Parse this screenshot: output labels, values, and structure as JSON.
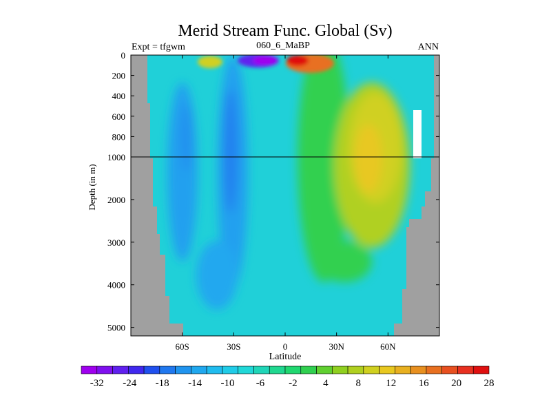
{
  "chart_data": {
    "type": "heatmap",
    "title": "Merid Stream Func. Global (Sv)",
    "left_label": "Expt = tfgwm",
    "center_label": "060_6_MaBP",
    "right_label": "ANN",
    "xlabel": "Latitude",
    "ylabel": "Depth (in m)",
    "x_ticks": [
      {
        "value": -60,
        "label": "60S"
      },
      {
        "value": -30,
        "label": "30S"
      },
      {
        "value": 0,
        "label": "0"
      },
      {
        "value": 30,
        "label": "30N"
      },
      {
        "value": 60,
        "label": "60N"
      }
    ],
    "y_ticks_upper": [
      {
        "value": 0,
        "label": "0"
      },
      {
        "value": 200,
        "label": "200"
      },
      {
        "value": 400,
        "label": "400"
      },
      {
        "value": 600,
        "label": "600"
      },
      {
        "value": 800,
        "label": "800"
      },
      {
        "value": 1000,
        "label": "1000"
      }
    ],
    "y_ticks_lower": [
      {
        "value": 2000,
        "label": "2000"
      },
      {
        "value": 3000,
        "label": "3000"
      },
      {
        "value": 4000,
        "label": "4000"
      },
      {
        "value": 5000,
        "label": "5000"
      }
    ],
    "xlim": [
      -90,
      90
    ],
    "ylim_upper": [
      0,
      1000
    ],
    "ylim_lower": [
      1000,
      5200
    ],
    "colorbar": {
      "labels": [
        "-32",
        "-24",
        "-18",
        "-14",
        "-10",
        "-6",
        "-2",
        "4",
        "8",
        "12",
        "16",
        "20",
        "28"
      ],
      "colors": [
        "#9f00ef",
        "#7f10ef",
        "#6020ef",
        "#4028ef",
        "#2050ef",
        "#2078ef",
        "#2094ef",
        "#20a8ef",
        "#20bcef",
        "#20cce8",
        "#20d8d8",
        "#20d6b8",
        "#20d890",
        "#20d870",
        "#30d050",
        "#60d030",
        "#90d020",
        "#b0d020",
        "#d0d020",
        "#e8c820",
        "#e8b020",
        "#e89020",
        "#e87020",
        "#e85020",
        "#e83020",
        "#e01010"
      ]
    },
    "land_color": "#a0a0a0"
  }
}
